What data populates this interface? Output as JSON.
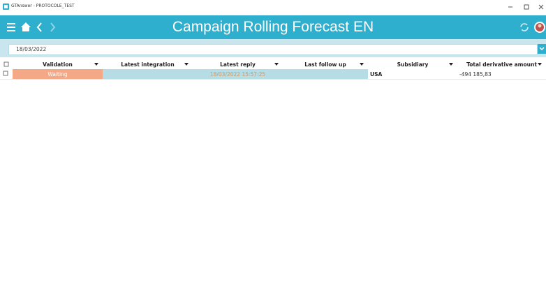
{
  "window": {
    "title": "GTAnswer - PROTOCOLE_TEST"
  },
  "header": {
    "title": "Campaign Rolling Forecast EN"
  },
  "filter": {
    "date": "18/03/2022"
  },
  "table": {
    "columns": [
      "Validation",
      "Latest integration",
      "Latest reply",
      "Last follow up",
      "Subsidiary",
      "Total derivative amount"
    ],
    "rows": [
      {
        "validation": "Waiting",
        "latest_reply": "18/03/2022 15:57:25",
        "subsidiary": "USA",
        "total_derivative_amount": "-494 185,83"
      }
    ]
  }
}
